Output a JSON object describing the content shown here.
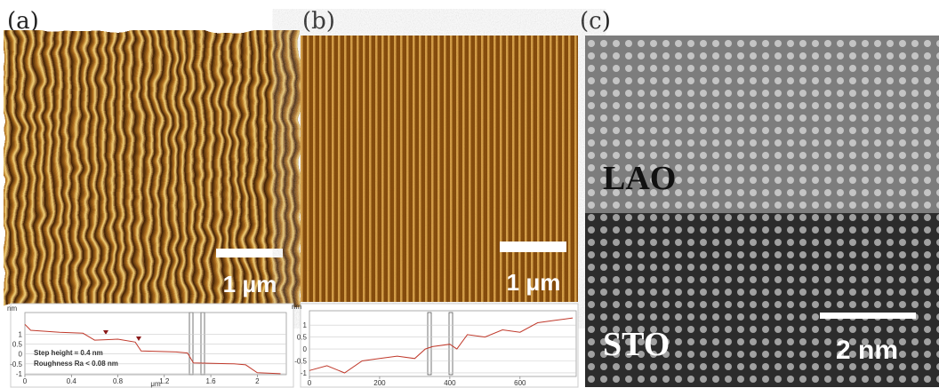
{
  "panels": [
    {
      "label": "(a)",
      "scale_bar": "1 μm"
    },
    {
      "label": "(b)",
      "scale_bar": "1 μm"
    },
    {
      "label": "(c)",
      "scale_bar": "2 nm",
      "layers": [
        "LAO",
        "STO"
      ]
    }
  ],
  "chart_data": [
    {
      "type": "line",
      "y_label": "nm",
      "x_label": "μm",
      "annotations": [
        "Step height  ≈ 0.4 nm",
        "Roughness  Ra < 0.08 nm"
      ],
      "x": [
        0,
        0.05,
        0.3,
        0.5,
        0.6,
        0.8,
        0.95,
        1.0,
        1.3,
        1.4,
        1.45,
        1.8,
        1.9,
        2.0,
        2.2
      ],
      "series": [
        {
          "color": "#c0392b",
          "values": [
            1.5,
            1.2,
            1.1,
            1.05,
            0.7,
            0.75,
            0.6,
            0.15,
            0.1,
            0.05,
            -0.45,
            -0.5,
            -0.55,
            -0.95,
            -1.0
          ]
        }
      ],
      "xlim": [
        0,
        2.25
      ],
      "ylim": [
        -1.05,
        2.1
      ],
      "xticks": [
        0,
        0.4,
        0.8,
        1.2,
        1.6,
        2
      ],
      "yticks": [
        1,
        0.5,
        0,
        -0.5,
        -1
      ],
      "grid": true
    },
    {
      "type": "line",
      "y_label": "nm",
      "x": [
        0,
        50,
        100,
        150,
        200,
        250,
        300,
        330,
        350,
        400,
        420,
        450,
        500,
        550,
        600,
        650,
        700,
        750
      ],
      "series": [
        {
          "color": "#c0392b",
          "values": [
            -0.9,
            -0.7,
            -1.0,
            -0.5,
            -0.4,
            -0.3,
            -0.4,
            0.0,
            0.1,
            0.2,
            0.0,
            0.6,
            0.5,
            0.8,
            0.7,
            1.1,
            1.2,
            1.3
          ]
        }
      ],
      "xlim": [
        0,
        760
      ],
      "ylim": [
        -1.15,
        1.6
      ],
      "xticks": [
        0,
        200,
        400,
        600
      ],
      "yticks": [
        1,
        0.5,
        0,
        -0.5,
        -1
      ],
      "grid": true
    }
  ]
}
